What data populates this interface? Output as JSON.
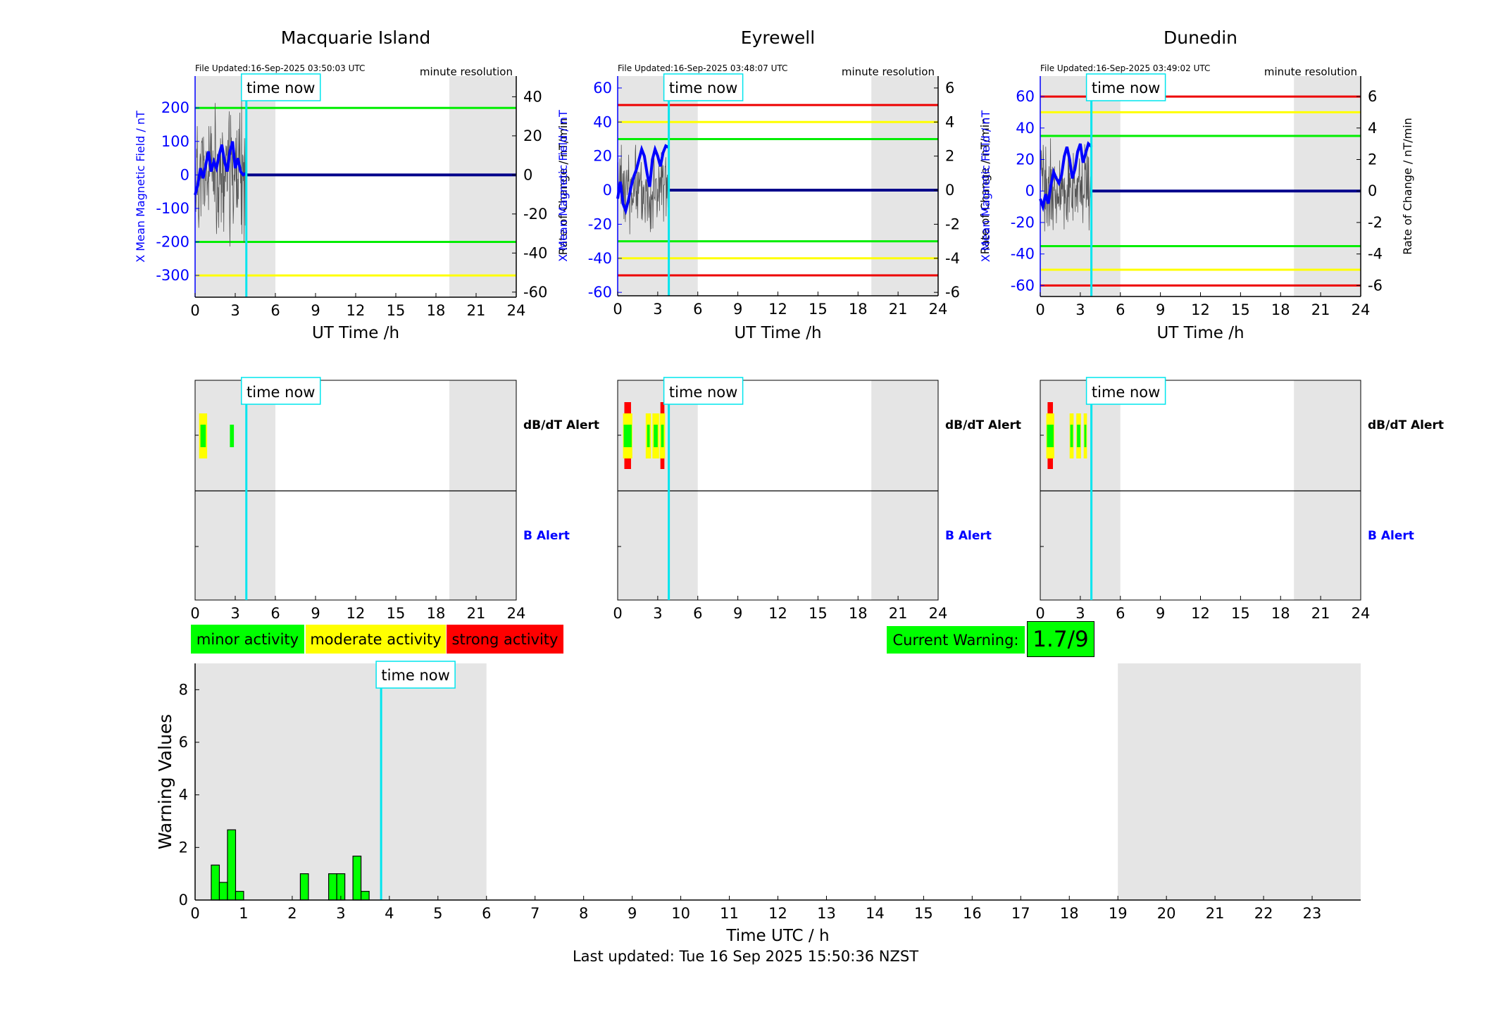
{
  "stations": [
    {
      "name": "Macquarie Island",
      "file_updated": "File Updated:16-Sep-2025 03:50:03 UTC",
      "resolution": "minute resolution",
      "ylabel_left": "X Mean Magnetic Field / nT",
      "ylabel_right": "Rate of Change / nT/min",
      "xlabel": "UT Time /h",
      "left_ylim": [
        -365,
        295
      ],
      "right_ylim": [
        -62.6,
        50.6
      ],
      "left_ticks": [
        -300,
        -200,
        -100,
        0,
        100,
        200
      ],
      "right_ticks": [
        -60,
        -40,
        -20,
        0,
        20,
        40
      ],
      "threshold_lines": [
        {
          "value": 200,
          "color": "#00ee00"
        },
        {
          "value": -200,
          "color": "#00ee00"
        },
        {
          "value": -300,
          "color": "#ffff00"
        }
      ],
      "field_x": [
        0,
        0.2,
        0.4,
        0.6,
        0.8,
        1.0,
        1.2,
        1.4,
        1.6,
        1.8,
        2.0,
        2.2,
        2.4,
        2.6,
        2.8,
        3.0,
        3.2,
        3.4,
        3.6,
        3.8
      ],
      "field_y": [
        -60,
        -30,
        20,
        -10,
        30,
        70,
        10,
        40,
        20,
        60,
        90,
        40,
        10,
        70,
        100,
        20,
        50,
        10,
        0,
        5
      ],
      "dbdt_seed": 11,
      "dbdt_amp": 30,
      "dbdt_alerts": [
        {
          "start": 0.3,
          "end": 0.9,
          "level": "moderate"
        },
        {
          "start": 0.4,
          "end": 0.8,
          "level": "minor"
        },
        {
          "start": 2.6,
          "end": 2.9,
          "level": "minor"
        }
      ]
    },
    {
      "name": "Eyrewell",
      "file_updated": "File Updated:16-Sep-2025 03:48:07 UTC",
      "resolution": "minute resolution",
      "ylabel_left": "X Mean Magnetic Field / nT",
      "ylabel_right": "Rate of Change / nT/min",
      "xlabel": "UT Time /h",
      "left_ylim": [
        -62,
        67
      ],
      "right_ylim": [
        -6.2,
        6.7
      ],
      "left_ticks": [
        -60,
        -40,
        -20,
        0,
        20,
        40,
        60
      ],
      "right_ticks": [
        -6,
        -4,
        -2,
        0,
        2,
        4,
        6
      ],
      "threshold_lines": [
        {
          "value": 50,
          "color": "#ee0000"
        },
        {
          "value": 40,
          "color": "#ffff00"
        },
        {
          "value": 30,
          "color": "#00ee00"
        },
        {
          "value": -30,
          "color": "#00ee00"
        },
        {
          "value": -40,
          "color": "#ffff00"
        },
        {
          "value": -50,
          "color": "#ee0000"
        }
      ],
      "field_x": [
        0,
        0.2,
        0.4,
        0.6,
        0.8,
        1.0,
        1.2,
        1.4,
        1.6,
        1.8,
        2.0,
        2.2,
        2.4,
        2.6,
        2.8,
        3.0,
        3.2,
        3.4,
        3.6,
        3.85
      ],
      "field_y": [
        -5,
        5,
        -8,
        -12,
        -6,
        2,
        8,
        12,
        18,
        24,
        20,
        10,
        2,
        18,
        24,
        20,
        14,
        22,
        26,
        25
      ],
      "dbdt_seed": 23,
      "dbdt_amp": 2.2,
      "dbdt_alerts": [
        {
          "start": 0.5,
          "end": 1.0,
          "level": "strong"
        },
        {
          "start": 0.4,
          "end": 1.1,
          "level": "moderate"
        },
        {
          "start": 0.45,
          "end": 1.05,
          "level": "minor"
        },
        {
          "start": 2.1,
          "end": 2.5,
          "level": "moderate"
        },
        {
          "start": 2.2,
          "end": 2.4,
          "level": "minor"
        },
        {
          "start": 2.6,
          "end": 3.1,
          "level": "moderate"
        },
        {
          "start": 2.7,
          "end": 3.0,
          "level": "minor"
        },
        {
          "start": 3.2,
          "end": 3.5,
          "level": "strong"
        },
        {
          "start": 3.15,
          "end": 3.55,
          "level": "moderate"
        },
        {
          "start": 3.25,
          "end": 3.45,
          "level": "minor"
        }
      ]
    },
    {
      "name": "Dunedin",
      "file_updated": "File Updated:16-Sep-2025 03:49:02 UTC",
      "resolution": "minute resolution",
      "ylabel_left": "X Mean Magnetic Field / nT",
      "ylabel_right": "Rate of Change / nT/min",
      "xlabel": "UT Time /h",
      "left_ylim": [
        -67,
        73
      ],
      "right_ylim": [
        -6.7,
        7.3
      ],
      "left_ticks": [
        -60,
        -40,
        -20,
        0,
        20,
        40,
        60
      ],
      "right_ticks": [
        -6,
        -4,
        -2,
        0,
        2,
        4,
        6
      ],
      "threshold_lines": [
        {
          "value": 60,
          "color": "#ee0000"
        },
        {
          "value": 50,
          "color": "#ffff00"
        },
        {
          "value": 35,
          "color": "#00ee00"
        },
        {
          "value": -35,
          "color": "#00ee00"
        },
        {
          "value": -50,
          "color": "#ffff00"
        },
        {
          "value": -60,
          "color": "#ee0000"
        }
      ],
      "field_x": [
        0,
        0.2,
        0.4,
        0.6,
        0.8,
        1.0,
        1.2,
        1.4,
        1.6,
        1.8,
        2.0,
        2.2,
        2.4,
        2.6,
        2.8,
        3.0,
        3.2,
        3.4,
        3.6,
        3.85
      ],
      "field_y": [
        -5,
        -10,
        -2,
        -8,
        4,
        12,
        8,
        5,
        10,
        22,
        28,
        20,
        8,
        14,
        25,
        30,
        18,
        24,
        30,
        28
      ],
      "dbdt_seed": 37,
      "dbdt_amp": 2.5,
      "dbdt_alerts": [
        {
          "start": 0.55,
          "end": 0.95,
          "level": "strong"
        },
        {
          "start": 0.45,
          "end": 1.05,
          "level": "moderate"
        },
        {
          "start": 0.5,
          "end": 1.0,
          "level": "minor"
        },
        {
          "start": 2.2,
          "end": 2.5,
          "level": "moderate"
        },
        {
          "start": 2.25,
          "end": 2.45,
          "level": "minor"
        },
        {
          "start": 2.7,
          "end": 3.05,
          "level": "moderate"
        },
        {
          "start": 2.75,
          "end": 3.0,
          "level": "minor"
        },
        {
          "start": 3.25,
          "end": 3.5,
          "level": "moderate"
        },
        {
          "start": 3.3,
          "end": 3.45,
          "level": "minor"
        }
      ]
    }
  ],
  "time_now": 3.83,
  "time_now_label": "time now",
  "shade_ranges": [
    [
      0,
      6
    ],
    [
      19,
      24
    ]
  ],
  "xticks_small": [
    0,
    3,
    6,
    9,
    12,
    15,
    18,
    21,
    24
  ],
  "alert_labels": {
    "dbdt": "dB/dT Alert",
    "b": "B Alert"
  },
  "legend": {
    "minor": "minor activity",
    "moderate": "moderate activity",
    "strong": "strong activity"
  },
  "current_warning": {
    "label": "Current Warning:",
    "value": "1.7/9"
  },
  "colors": {
    "minor": "#00ff00",
    "moderate": "#ffff00",
    "strong": "#ff0000",
    "field": "#0000ff",
    "now": "#00e5ee",
    "shade": "#e5e5e5"
  },
  "chart_data": {
    "type": "bar",
    "xlabel": "Time UTC / h",
    "ylabel": "Warning Values",
    "xlim": [
      0,
      24
    ],
    "ylim": [
      0,
      9
    ],
    "xticks": [
      0,
      1,
      2,
      3,
      4,
      5,
      6,
      7,
      8,
      9,
      10,
      11,
      12,
      13,
      14,
      15,
      16,
      17,
      18,
      19,
      20,
      21,
      22,
      23
    ],
    "yticks": [
      0,
      2,
      4,
      6,
      8
    ],
    "bar_width": 0.1667,
    "bars": [
      {
        "x": 0.333,
        "value": 1.33
      },
      {
        "x": 0.5,
        "value": 0.67
      },
      {
        "x": 0.667,
        "value": 2.67
      },
      {
        "x": 0.833,
        "value": 0.33
      },
      {
        "x": 2.167,
        "value": 1.0
      },
      {
        "x": 2.75,
        "value": 1.0
      },
      {
        "x": 2.917,
        "value": 1.0
      },
      {
        "x": 3.25,
        "value": 1.67
      },
      {
        "x": 3.417,
        "value": 0.33
      }
    ]
  },
  "footer": "Last updated: Tue 16 Sep 2025 15:50:36 NZST"
}
